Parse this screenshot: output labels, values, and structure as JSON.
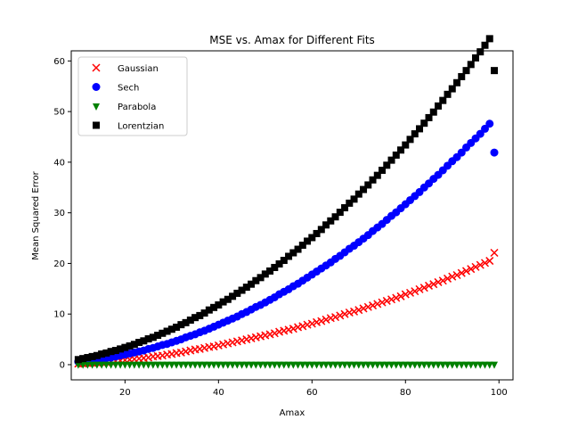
{
  "chart_data": {
    "type": "scatter",
    "title": "MSE vs. Amax for Different Fits",
    "xlabel": "Amax",
    "ylabel": "Mean Squared Error",
    "xlim": [
      8.5,
      103
    ],
    "ylim": [
      -3,
      62
    ],
    "xticks": [
      20,
      40,
      60,
      80,
      100
    ],
    "yticks": [
      0,
      10,
      20,
      30,
      40,
      50,
      60
    ],
    "legend_position": "top-left",
    "x": [
      10,
      11,
      12,
      13,
      14,
      15,
      16,
      17,
      18,
      19,
      20,
      21,
      22,
      23,
      24,
      25,
      26,
      27,
      28,
      29,
      30,
      31,
      32,
      33,
      34,
      35,
      36,
      37,
      38,
      39,
      40,
      41,
      42,
      43,
      44,
      45,
      46,
      47,
      48,
      49,
      50,
      51,
      52,
      53,
      54,
      55,
      56,
      57,
      58,
      59,
      60,
      61,
      62,
      63,
      64,
      65,
      66,
      67,
      68,
      69,
      70,
      71,
      72,
      73,
      74,
      75,
      76,
      77,
      78,
      79,
      80,
      81,
      82,
      83,
      84,
      85,
      86,
      87,
      88,
      89,
      90,
      91,
      92,
      93,
      94,
      95,
      96,
      97,
      98,
      99
    ],
    "series": [
      {
        "name": "Gaussian",
        "marker": "x",
        "color": "#ff0000",
        "values": [
          0.2,
          0.25,
          0.3,
          0.35,
          0.4,
          0.5,
          0.5,
          0.6,
          0.7,
          0.8,
          0.9,
          1.0,
          1.1,
          1.2,
          1.3,
          1.4,
          1.6,
          1.7,
          1.8,
          2.0,
          2.1,
          2.3,
          2.4,
          2.6,
          2.8,
          3.0,
          3.1,
          3.3,
          3.5,
          3.6,
          3.8,
          4.0,
          4.2,
          4.4,
          4.6,
          4.8,
          5.0,
          5.2,
          5.4,
          5.6,
          5.8,
          6.0,
          6.2,
          6.5,
          6.7,
          6.9,
          7.1,
          7.4,
          7.6,
          7.9,
          8.1,
          8.4,
          8.6,
          8.9,
          9.2,
          9.4,
          9.7,
          10.0,
          10.3,
          10.5,
          10.8,
          11.1,
          11.4,
          11.7,
          12.0,
          12.3,
          12.6,
          12.9,
          13.2,
          13.5,
          13.9,
          14.2,
          14.5,
          14.9,
          15.2,
          15.6,
          15.9,
          16.3,
          16.6,
          17.0,
          17.4,
          17.7,
          18.1,
          18.5,
          18.9,
          19.3,
          19.7,
          20.1,
          20.5,
          22.1
        ]
      },
      {
        "name": "Sech",
        "marker": "circle",
        "color": "#0000ff",
        "values": [
          0.6,
          0.7,
          0.8,
          0.9,
          1.0,
          1.1,
          1.3,
          1.4,
          1.6,
          1.8,
          2.0,
          2.2,
          2.4,
          2.6,
          2.8,
          3.1,
          3.3,
          3.6,
          3.9,
          4.1,
          4.4,
          4.7,
          5.0,
          5.4,
          5.7,
          6.0,
          6.4,
          6.7,
          7.1,
          7.5,
          7.9,
          8.3,
          8.7,
          9.1,
          9.5,
          10.0,
          10.4,
          10.9,
          11.4,
          11.8,
          12.3,
          12.8,
          13.3,
          13.9,
          14.4,
          14.9,
          15.5,
          16.0,
          16.6,
          17.2,
          17.8,
          18.4,
          19.0,
          19.6,
          20.2,
          20.9,
          21.5,
          22.2,
          22.9,
          23.5,
          24.2,
          24.9,
          25.6,
          26.4,
          27.1,
          27.8,
          28.6,
          29.4,
          30.1,
          30.9,
          31.7,
          32.5,
          33.3,
          34.1,
          35.0,
          35.8,
          36.7,
          37.5,
          38.4,
          39.3,
          40.2,
          41.0,
          41.9,
          42.9,
          43.8,
          44.7,
          45.6,
          46.6,
          47.6,
          41.9
        ]
      },
      {
        "name": "Parabola",
        "marker": "triangle-down",
        "color": "#008000",
        "values": [
          0.05,
          0.05,
          0.05,
          0.05,
          0.05,
          0.05,
          0.05,
          0.05,
          0.05,
          0.05,
          0.05,
          0.05,
          0.05,
          0.05,
          0.05,
          0.05,
          0.05,
          0.05,
          0.05,
          0.05,
          0.05,
          0.05,
          0.05,
          0.05,
          0.05,
          0.05,
          0.05,
          0.05,
          0.05,
          0.05,
          0.05,
          0.05,
          0.05,
          0.05,
          0.05,
          0.05,
          0.05,
          0.05,
          0.05,
          0.05,
          0.05,
          0.05,
          0.05,
          0.05,
          0.05,
          0.05,
          0.05,
          0.05,
          0.05,
          0.05,
          0.05,
          0.05,
          0.05,
          0.05,
          0.05,
          0.05,
          0.05,
          0.05,
          0.05,
          0.05,
          0.05,
          0.05,
          0.05,
          0.05,
          0.05,
          0.05,
          0.05,
          0.05,
          0.05,
          0.05,
          0.05,
          0.05,
          0.05,
          0.05,
          0.05,
          0.05,
          0.05,
          0.05,
          0.05,
          0.05,
          0.05,
          0.05,
          0.05,
          0.05,
          0.05,
          0.05,
          0.05,
          0.05,
          0.05,
          0.05
        ]
      },
      {
        "name": "Lorentzian",
        "marker": "square",
        "color": "#000000",
        "values": [
          1.0,
          1.2,
          1.4,
          1.6,
          1.8,
          2.1,
          2.3,
          2.6,
          2.8,
          3.1,
          3.4,
          3.7,
          4.0,
          4.4,
          4.7,
          5.1,
          5.4,
          5.8,
          6.2,
          6.6,
          7.0,
          7.4,
          7.9,
          8.3,
          8.8,
          9.3,
          9.7,
          10.2,
          10.8,
          11.3,
          11.8,
          12.4,
          12.9,
          13.5,
          14.1,
          14.7,
          15.3,
          15.9,
          16.6,
          17.2,
          17.9,
          18.5,
          19.2,
          19.9,
          20.6,
          21.4,
          22.1,
          22.8,
          23.6,
          24.4,
          25.1,
          25.9,
          26.7,
          27.6,
          28.4,
          29.2,
          30.1,
          31.0,
          31.9,
          32.7,
          33.7,
          34.6,
          35.5,
          36.5,
          37.4,
          38.4,
          39.4,
          40.4,
          41.4,
          42.4,
          43.4,
          44.5,
          45.6,
          46.6,
          47.7,
          48.8,
          49.9,
          51.1,
          52.2,
          53.4,
          54.5,
          55.7,
          56.9,
          58.1,
          59.3,
          60.6,
          61.8,
          63.1,
          64.4,
          58.1
        ]
      }
    ]
  }
}
